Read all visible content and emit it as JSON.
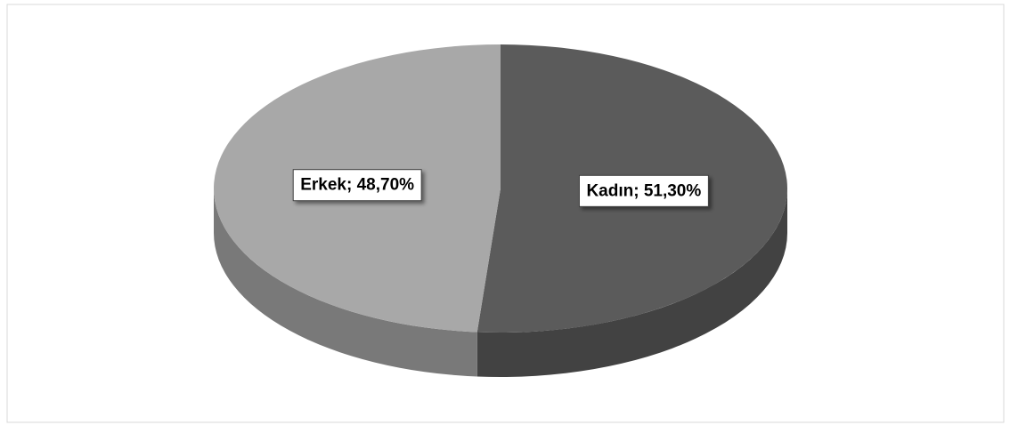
{
  "chart_data": {
    "type": "pie",
    "categories": [
      "Kadın",
      "Erkek"
    ],
    "values": [
      51.3,
      48.7
    ],
    "value_labels": [
      "Kadın; 51,30%",
      "Erkek; 48,70%"
    ],
    "colors": [
      "#5b5b5b",
      "#a8a8a8"
    ]
  }
}
